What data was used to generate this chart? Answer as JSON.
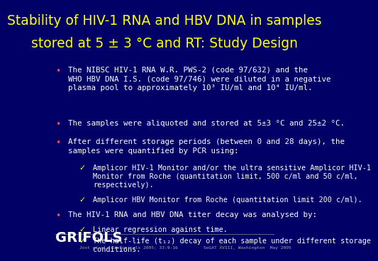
{
  "bg_color": "#000066",
  "title_line1": "Stability of HIV-1 RNA and HBV DNA in samples",
  "title_line2": "stored at 5 ± 3 °C and RT: Study Design",
  "title_color": "#ffff00",
  "title_fontsize": 13.5,
  "body_color": "#ffffff",
  "body_fontsize": 7.8,
  "bullet_color": "#ff4444",
  "checkmark_color": "#ffff00",
  "grifols_color": "#ffffff",
  "grifols_fontsize": 14,
  "footer_color": "#aaaaaa",
  "footer_left": "Jost et al. Biologicals 2005; 33:9-16",
  "footer_right": "SoGAT XVIII, Washington  May 2005"
}
